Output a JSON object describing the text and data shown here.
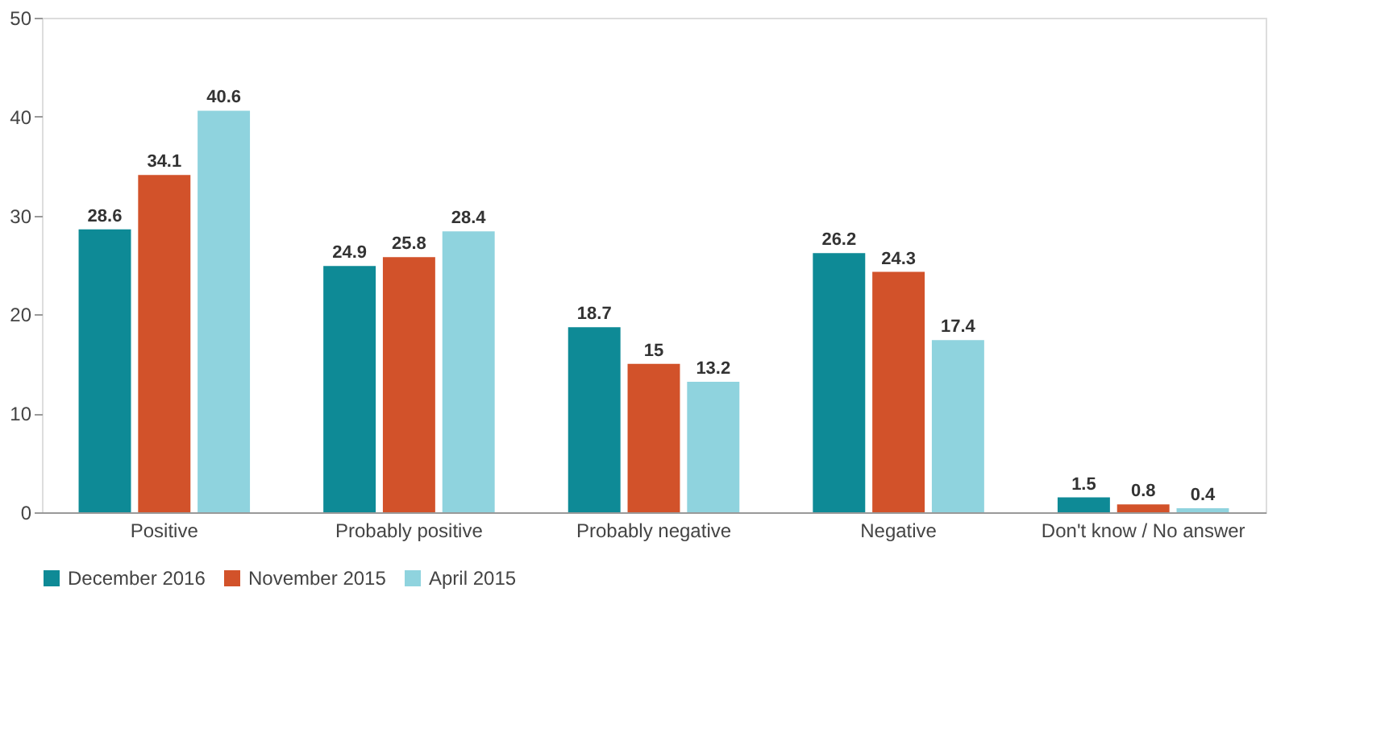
{
  "chart_data": {
    "type": "bar",
    "categories": [
      "Positive",
      "Probably positive",
      "Probably negative",
      "Negative",
      "Don't know / No answer"
    ],
    "series": [
      {
        "name": "December 2016",
        "color": "#0e8a96",
        "values": [
          28.6,
          24.9,
          18.7,
          26.2,
          1.5
        ]
      },
      {
        "name": "November 2015",
        "color": "#d2522a",
        "values": [
          34.1,
          25.8,
          15,
          24.3,
          0.8
        ]
      },
      {
        "name": "April 2015",
        "color": "#8fd3de",
        "values": [
          40.6,
          28.4,
          13.2,
          17.4,
          0.4
        ]
      }
    ],
    "ylim": [
      0,
      50
    ],
    "yticks": [
      0,
      10,
      20,
      30,
      40,
      50
    ],
    "grid": false,
    "legend": "bottom left",
    "data_labels": true
  }
}
